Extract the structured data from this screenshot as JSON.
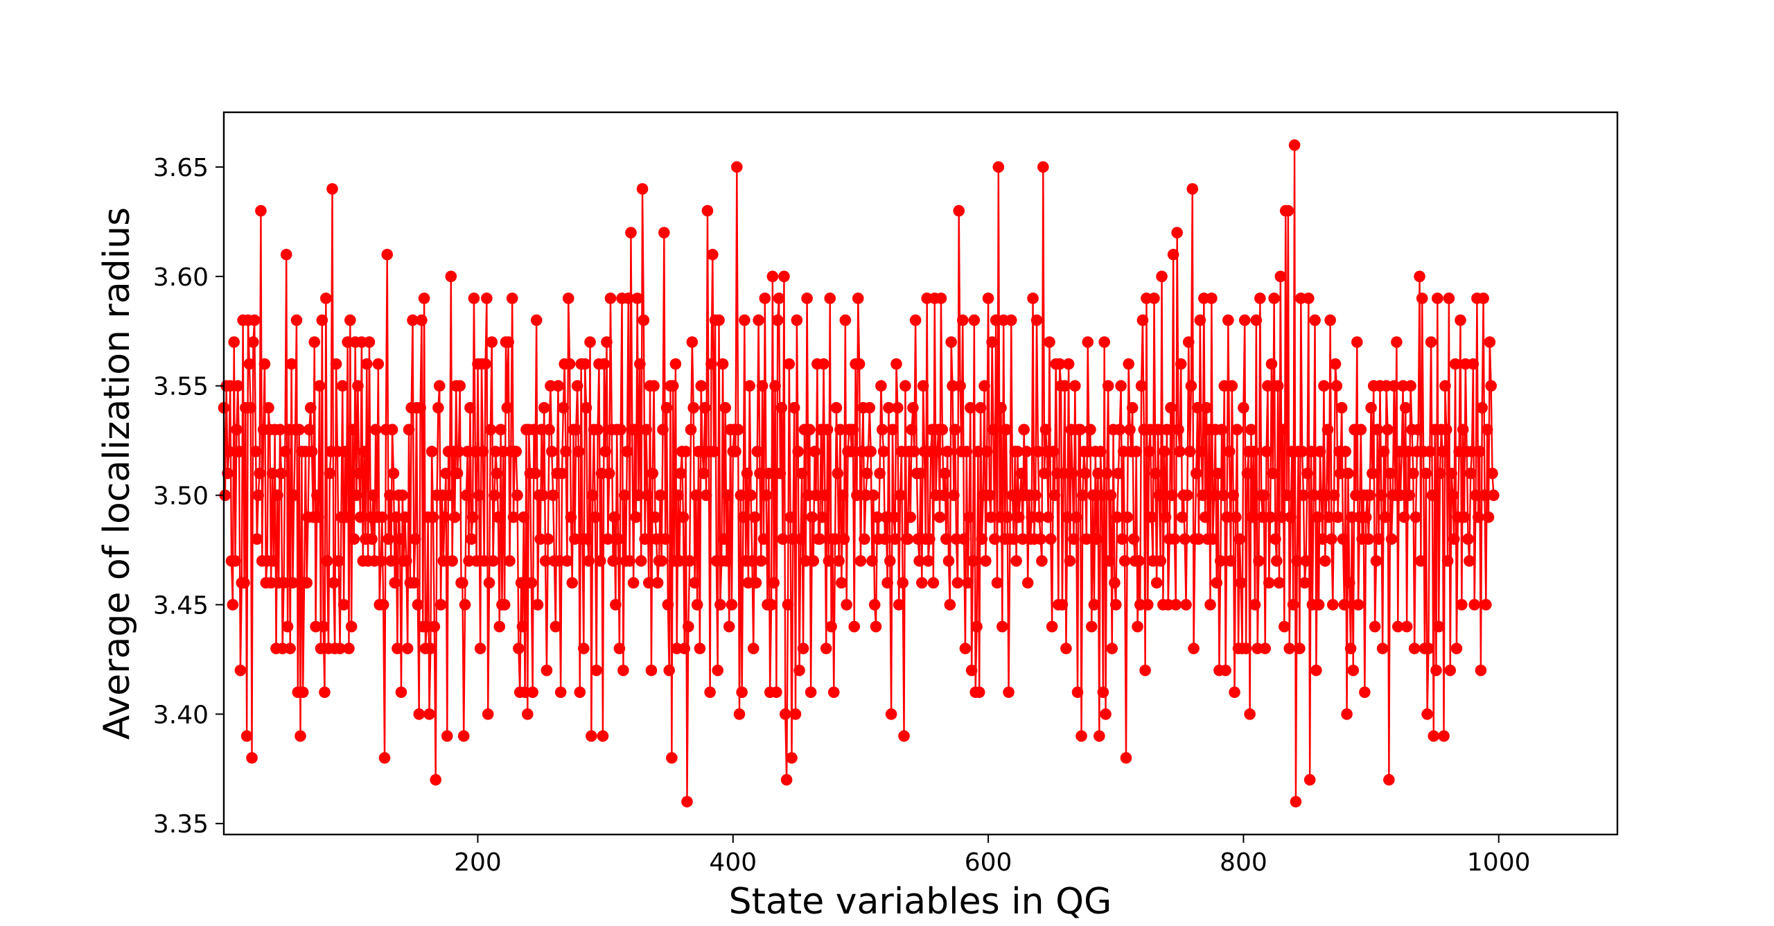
{
  "chart_data": {
    "type": "line",
    "xlabel": "State variables in QG",
    "ylabel": "Average of localization radius",
    "xlim": [
      1,
      1093
    ],
    "ylim": [
      3.345,
      3.675
    ],
    "xticks": [
      200,
      400,
      600,
      800,
      1000
    ],
    "xtick_labels": [
      "200",
      "400",
      "600",
      "800",
      "1000"
    ],
    "yticks": [
      3.35,
      3.4,
      3.45,
      3.5,
      3.55,
      3.6,
      3.65
    ],
    "ytick_labels": [
      "3.35",
      "3.40",
      "3.45",
      "3.50",
      "3.55",
      "3.60",
      "3.65"
    ],
    "grid": false,
    "legend": "none",
    "series": [
      {
        "color": "#ff0000",
        "marker": "circle",
        "x_start": 1,
        "x_step": 1,
        "y": [
          3.54,
          3.5,
          3.55,
          3.51,
          3.52,
          3.55,
          3.47,
          3.45,
          3.57,
          3.47,
          3.53,
          3.55,
          3.52,
          3.42,
          3.46,
          3.58,
          3.46,
          3.54,
          3.39,
          3.58,
          3.56,
          3.54,
          3.38,
          3.57,
          3.58,
          3.52,
          3.48,
          3.5,
          3.51,
          3.63,
          3.47,
          3.53,
          3.56,
          3.46,
          3.47,
          3.54,
          3.53,
          3.46,
          3.51,
          3.47,
          3.53,
          3.43,
          3.5,
          3.46,
          3.53,
          3.51,
          3.43,
          3.46,
          3.52,
          3.61,
          3.44,
          3.53,
          3.43,
          3.56,
          3.46,
          3.5,
          3.53,
          3.58,
          3.41,
          3.53,
          3.39,
          3.52,
          3.41,
          3.46,
          3.52,
          3.46,
          3.49,
          3.53,
          3.54,
          3.52,
          3.49,
          3.57,
          3.44,
          3.5,
          3.49,
          3.55,
          3.43,
          3.58,
          3.44,
          3.41,
          3.59,
          3.47,
          3.43,
          3.51,
          3.52,
          3.64,
          3.46,
          3.43,
          3.56,
          3.52,
          3.47,
          3.43,
          3.49,
          3.55,
          3.45,
          3.52,
          3.49,
          3.57,
          3.43,
          3.58,
          3.44,
          3.53,
          3.48,
          3.57,
          3.5,
          3.55,
          3.51,
          3.49,
          3.57,
          3.47,
          3.52,
          3.48,
          3.56,
          3.47,
          3.57,
          3.49,
          3.48,
          3.5,
          3.47,
          3.53,
          3.49,
          3.56,
          3.45,
          3.47,
          3.49,
          3.45,
          3.38,
          3.53,
          3.61,
          3.48,
          3.5,
          3.47,
          3.53,
          3.51,
          3.46,
          3.49,
          3.43,
          3.5,
          3.48,
          3.41,
          3.5,
          3.47,
          3.49,
          3.47,
          3.43,
          3.53,
          3.46,
          3.54,
          3.58,
          3.46,
          3.48,
          3.54,
          3.45,
          3.4,
          3.54,
          3.58,
          3.44,
          3.59,
          3.43,
          3.44,
          3.49,
          3.4,
          3.43,
          3.52,
          3.49,
          3.44,
          3.37,
          3.5,
          3.54,
          3.55,
          3.45,
          3.5,
          3.47,
          3.49,
          3.51,
          3.39,
          3.52,
          3.5,
          3.6,
          3.47,
          3.52,
          3.49,
          3.55,
          3.51,
          3.52,
          3.55,
          3.46,
          3.46,
          3.39,
          3.45,
          3.5,
          3.52,
          3.47,
          3.54,
          3.48,
          3.49,
          3.59,
          3.52,
          3.47,
          3.56,
          3.5,
          3.43,
          3.56,
          3.52,
          3.47,
          3.56,
          3.59,
          3.4,
          3.46,
          3.53,
          3.57,
          3.47,
          3.5,
          3.52,
          3.51,
          3.49,
          3.44,
          3.53,
          3.45,
          3.52,
          3.45,
          3.57,
          3.54,
          3.57,
          3.47,
          3.52,
          3.59,
          3.49,
          3.52,
          3.52,
          3.5,
          3.43,
          3.41,
          3.46,
          3.44,
          3.49,
          3.41,
          3.53,
          3.4,
          3.53,
          3.51,
          3.46,
          3.41,
          3.53,
          3.51,
          3.58,
          3.45,
          3.5,
          3.48,
          3.53,
          3.5,
          3.54,
          3.47,
          3.42,
          3.48,
          3.53,
          3.55,
          3.52,
          3.5,
          3.47,
          3.44,
          3.51,
          3.55,
          3.47,
          3.41,
          3.51,
          3.54,
          3.56,
          3.52,
          3.47,
          3.59,
          3.56,
          3.49,
          3.46,
          3.53,
          3.48,
          3.53,
          3.55,
          3.52,
          3.41,
          3.56,
          3.48,
          3.43,
          3.56,
          3.54,
          3.48,
          3.47,
          3.57,
          3.39,
          3.5,
          3.53,
          3.49,
          3.42,
          3.53,
          3.56,
          3.47,
          3.51,
          3.39,
          3.56,
          3.52,
          3.57,
          3.48,
          3.51,
          3.59,
          3.53,
          3.47,
          3.49,
          3.45,
          3.53,
          3.48,
          3.43,
          3.53,
          3.59,
          3.42,
          3.5,
          3.47,
          3.52,
          3.59,
          3.47,
          3.62,
          3.53,
          3.46,
          3.53,
          3.49,
          3.59,
          3.5,
          3.56,
          3.47,
          3.64,
          3.58,
          3.48,
          3.53,
          3.5,
          3.46,
          3.55,
          3.42,
          3.51,
          3.55,
          3.49,
          3.48,
          3.46,
          3.47,
          3.5,
          3.47,
          3.53,
          3.62,
          3.48,
          3.54,
          3.45,
          3.42,
          3.55,
          3.38,
          3.55,
          3.47,
          3.56,
          3.43,
          3.5,
          3.47,
          3.51,
          3.52,
          3.49,
          3.43,
          3.52,
          3.36,
          3.44,
          3.47,
          3.53,
          3.57,
          3.54,
          3.46,
          3.5,
          3.45,
          3.52,
          3.43,
          3.55,
          3.52,
          3.51,
          3.54,
          3.5,
          3.63,
          3.52,
          3.41,
          3.56,
          3.61,
          3.52,
          3.58,
          3.47,
          3.42,
          3.58,
          3.45,
          3.47,
          3.56,
          3.48,
          3.54,
          3.47,
          3.5,
          3.44,
          3.53,
          3.45,
          3.52,
          3.53,
          3.52,
          3.65,
          3.53,
          3.4,
          3.5,
          3.41,
          3.49,
          3.58,
          3.47,
          3.51,
          3.46,
          3.55,
          3.5,
          3.47,
          3.43,
          3.49,
          3.46,
          3.52,
          3.58,
          3.51,
          3.47,
          3.55,
          3.48,
          3.59,
          3.5,
          3.45,
          3.51,
          3.41,
          3.45,
          3.6,
          3.46,
          3.55,
          3.41,
          3.58,
          3.59,
          3.51,
          3.54,
          3.48,
          3.6,
          3.4,
          3.37,
          3.45,
          3.56,
          3.49,
          3.38,
          3.48,
          3.54,
          3.4,
          3.58,
          3.52,
          3.42,
          3.48,
          3.51,
          3.43,
          3.53,
          3.47,
          3.59,
          3.5,
          3.53,
          3.41,
          3.49,
          3.47,
          3.52,
          3.5,
          3.56,
          3.48,
          3.48,
          3.53,
          3.49,
          3.56,
          3.5,
          3.43,
          3.53,
          3.47,
          3.59,
          3.44,
          3.48,
          3.41,
          3.48,
          3.54,
          3.51,
          3.47,
          3.53,
          3.46,
          3.5,
          3.48,
          3.58,
          3.45,
          3.52,
          3.53,
          3.53,
          3.52,
          3.53,
          3.44,
          3.56,
          3.5,
          3.59,
          3.56,
          3.47,
          3.52,
          3.54,
          3.48,
          3.5,
          3.51,
          3.52,
          3.54,
          3.52,
          3.47,
          3.5,
          3.45,
          3.44,
          3.49,
          3.48,
          3.51,
          3.55,
          3.53,
          3.52,
          3.48,
          3.49,
          3.46,
          3.54,
          3.47,
          3.4,
          3.53,
          3.49,
          3.48,
          3.56,
          3.54,
          3.45,
          3.5,
          3.52,
          3.46,
          3.39,
          3.55,
          3.48,
          3.48,
          3.52,
          3.49,
          3.53,
          3.54,
          3.52,
          3.58,
          3.51,
          3.48,
          3.47,
          3.51,
          3.46,
          3.55,
          3.52,
          3.48,
          3.59,
          3.47,
          3.48,
          3.52,
          3.53,
          3.46,
          3.59,
          3.5,
          3.52,
          3.53,
          3.49,
          3.59,
          3.53,
          3.5,
          3.51,
          3.48,
          3.52,
          3.47,
          3.45,
          3.57,
          3.55,
          3.5,
          3.53,
          3.48,
          3.46,
          3.63,
          3.55,
          3.52,
          3.58,
          3.48,
          3.43,
          3.52,
          3.46,
          3.49,
          3.54,
          3.42,
          3.47,
          3.58,
          3.41,
          3.44,
          3.52,
          3.41,
          3.54,
          3.48,
          3.5,
          3.55,
          3.47,
          3.52,
          3.59,
          3.5,
          3.49,
          3.57,
          3.53,
          3.48,
          3.58,
          3.46,
          3.65,
          3.49,
          3.54,
          3.44,
          3.58,
          3.48,
          3.53,
          3.49,
          3.41,
          3.48,
          3.58,
          3.5,
          3.48,
          3.52,
          3.47,
          3.52,
          3.49,
          3.5,
          3.51,
          3.48,
          3.53,
          3.5,
          3.52,
          3.46,
          3.5,
          3.48,
          3.49,
          3.59,
          3.48,
          3.5,
          3.58,
          3.52,
          3.49,
          3.48,
          3.47,
          3.65,
          3.51,
          3.53,
          3.52,
          3.49,
          3.57,
          3.48,
          3.44,
          3.52,
          3.5,
          3.56,
          3.51,
          3.45,
          3.56,
          3.55,
          3.45,
          3.51,
          3.55,
          3.43,
          3.49,
          3.56,
          3.47,
          3.53,
          3.51,
          3.48,
          3.55,
          3.49,
          3.41,
          3.53,
          3.53,
          3.39,
          3.5,
          3.52,
          3.51,
          3.48,
          3.57,
          3.52,
          3.53,
          3.44,
          3.5,
          3.45,
          3.52,
          3.48,
          3.51,
          3.39,
          3.52,
          3.5,
          3.41,
          3.57,
          3.4,
          3.51,
          3.55,
          3.47,
          3.5,
          3.43,
          3.53,
          3.46,
          3.45,
          3.49,
          3.51,
          3.53,
          3.55,
          3.48,
          3.52,
          3.47,
          3.38,
          3.49,
          3.56,
          3.53,
          3.52,
          3.54,
          3.48,
          3.47,
          3.52,
          3.44,
          3.47,
          3.45,
          3.55,
          3.58,
          3.53,
          3.42,
          3.59,
          3.45,
          3.52,
          3.53,
          3.49,
          3.47,
          3.59,
          3.51,
          3.46,
          3.53,
          3.5,
          3.47,
          3.6,
          3.45,
          3.52,
          3.49,
          3.53,
          3.45,
          3.48,
          3.54,
          3.5,
          3.61,
          3.48,
          3.45,
          3.62,
          3.53,
          3.52,
          3.56,
          3.49,
          3.5,
          3.48,
          3.45,
          3.5,
          3.57,
          3.52,
          3.55,
          3.64,
          3.43,
          3.48,
          3.51,
          3.54,
          3.48,
          3.58,
          3.52,
          3.5,
          3.59,
          3.49,
          3.54,
          3.48,
          3.53,
          3.45,
          3.59,
          3.48,
          3.5,
          3.53,
          3.46,
          3.51,
          3.42,
          3.47,
          3.53,
          3.5,
          3.55,
          3.42,
          3.49,
          3.58,
          3.52,
          3.47,
          3.55,
          3.5,
          3.41,
          3.49,
          3.53,
          3.43,
          3.48,
          3.46,
          3.43,
          3.54,
          3.58,
          3.43,
          3.51,
          3.52,
          3.4,
          3.53,
          3.49,
          3.52,
          3.45,
          3.58,
          3.43,
          3.47,
          3.59,
          3.5,
          3.49,
          3.5,
          3.43,
          3.52,
          3.55,
          3.46,
          3.49,
          3.56,
          3.51,
          3.59,
          3.48,
          3.47,
          3.55,
          3.46,
          3.6,
          3.49,
          3.53,
          3.44,
          3.63,
          3.5,
          3.63,
          3.43,
          3.49,
          3.52,
          3.45,
          3.66,
          3.36,
          3.47,
          3.52,
          3.43,
          3.59,
          3.52,
          3.5,
          3.46,
          3.47,
          3.51,
          3.59,
          3.37,
          3.52,
          3.45,
          3.5,
          3.58,
          3.42,
          3.49,
          3.45,
          3.52,
          3.5,
          3.48,
          3.55,
          3.47,
          3.5,
          3.53,
          3.49,
          3.58,
          3.48,
          3.45,
          3.5,
          3.56,
          3.55,
          3.49,
          3.52,
          3.51,
          3.54,
          3.48,
          3.45,
          3.52,
          3.4,
          3.51,
          3.46,
          3.43,
          3.49,
          3.42,
          3.53,
          3.5,
          3.57,
          3.45,
          3.49,
          3.53,
          3.48,
          3.5,
          3.41,
          3.49,
          3.5,
          3.48,
          3.5,
          3.54,
          3.51,
          3.55,
          3.44,
          3.47,
          3.53,
          3.48,
          3.55,
          3.5,
          3.43,
          3.52,
          3.49,
          3.55,
          3.53,
          3.37,
          3.51,
          3.48,
          3.5,
          3.55,
          3.5,
          3.57,
          3.44,
          3.52,
          3.5,
          3.52,
          3.55,
          3.49,
          3.54,
          3.44,
          3.52,
          3.5,
          3.55,
          3.53,
          3.51,
          3.43,
          3.49,
          3.52,
          3.53,
          3.6,
          3.47,
          3.59,
          3.52,
          3.43,
          3.51,
          3.4,
          3.43,
          3.52,
          3.57,
          3.5,
          3.39,
          3.53,
          3.42,
          3.59,
          3.44,
          3.51,
          3.53,
          3.52,
          3.39,
          3.55,
          3.53,
          3.47,
          3.59,
          3.42,
          3.51,
          3.5,
          3.48,
          3.56,
          3.43,
          3.49,
          3.52,
          3.58,
          3.45,
          3.53,
          3.49,
          3.56,
          3.52,
          3.48,
          3.47,
          3.51,
          3.52,
          3.56,
          3.45,
          3.5,
          3.59,
          3.49,
          3.52,
          3.42,
          3.54,
          3.59,
          3.5,
          3.45,
          3.53,
          3.49,
          3.57,
          3.55,
          3.51,
          3.5
        ]
      }
    ]
  }
}
